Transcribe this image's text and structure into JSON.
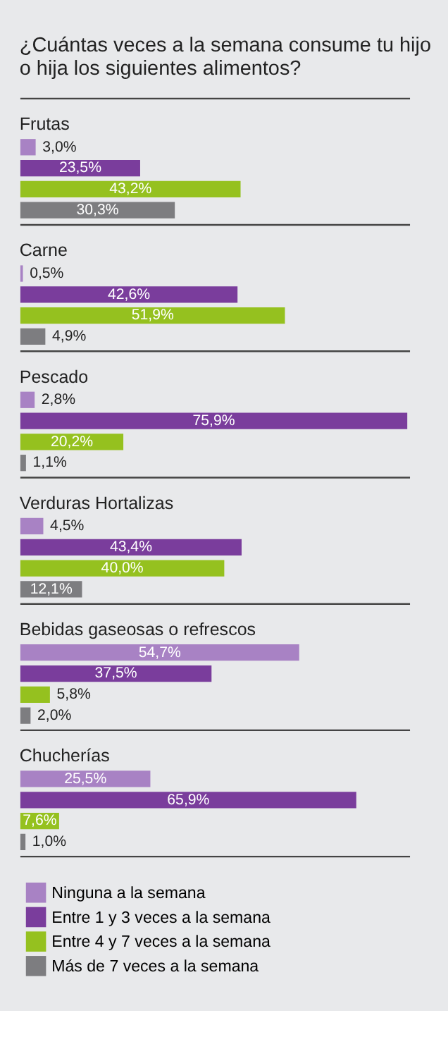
{
  "chart_data": {
    "type": "bar",
    "orientation": "horizontal",
    "title": "¿Cuántas veces a la semana consume tu hijo o hija los siguientes alimentos?",
    "categories": [
      "Frutas",
      "Carne",
      "Pescado",
      "Verduras Hortalizas",
      "Bebidas gaseosas o refrescos",
      "Chucherías"
    ],
    "legend": "bottom",
    "series": [
      {
        "name": "Ninguna a la semana",
        "color": "#a882c4",
        "values": [
          3.0,
          0.5,
          2.8,
          4.5,
          54.7,
          25.5
        ],
        "value_labels": [
          "3,0%",
          "0,5%",
          "2,8%",
          "4,5%",
          "54,7%",
          "25,5%"
        ]
      },
      {
        "name": "Entre 1 y 3 veces a la semana",
        "color": "#7a3d9c",
        "values": [
          23.5,
          42.6,
          75.9,
          43.4,
          37.5,
          65.9
        ],
        "value_labels": [
          "23,5%",
          "42,6%",
          "75,9%",
          "43,4%",
          "37,5%",
          "65,9%"
        ]
      },
      {
        "name": "Entre 4 y 7 veces a la semana",
        "color": "#95c11f",
        "values": [
          43.2,
          51.9,
          20.2,
          40.0,
          5.8,
          7.6
        ],
        "value_labels": [
          "43,2%",
          "51,9%",
          "20,2%",
          "40,0%",
          "5,8%",
          "7,6%"
        ]
      },
      {
        "name": "Más de 7 veces a la semana",
        "color": "#7d7d80",
        "values": [
          30.3,
          4.9,
          1.1,
          12.1,
          2.0,
          1.0
        ],
        "value_labels": [
          "30,3%",
          "4,9%",
          "1,1%",
          "12,1%",
          "2,0%",
          "1,0%"
        ]
      }
    ]
  }
}
